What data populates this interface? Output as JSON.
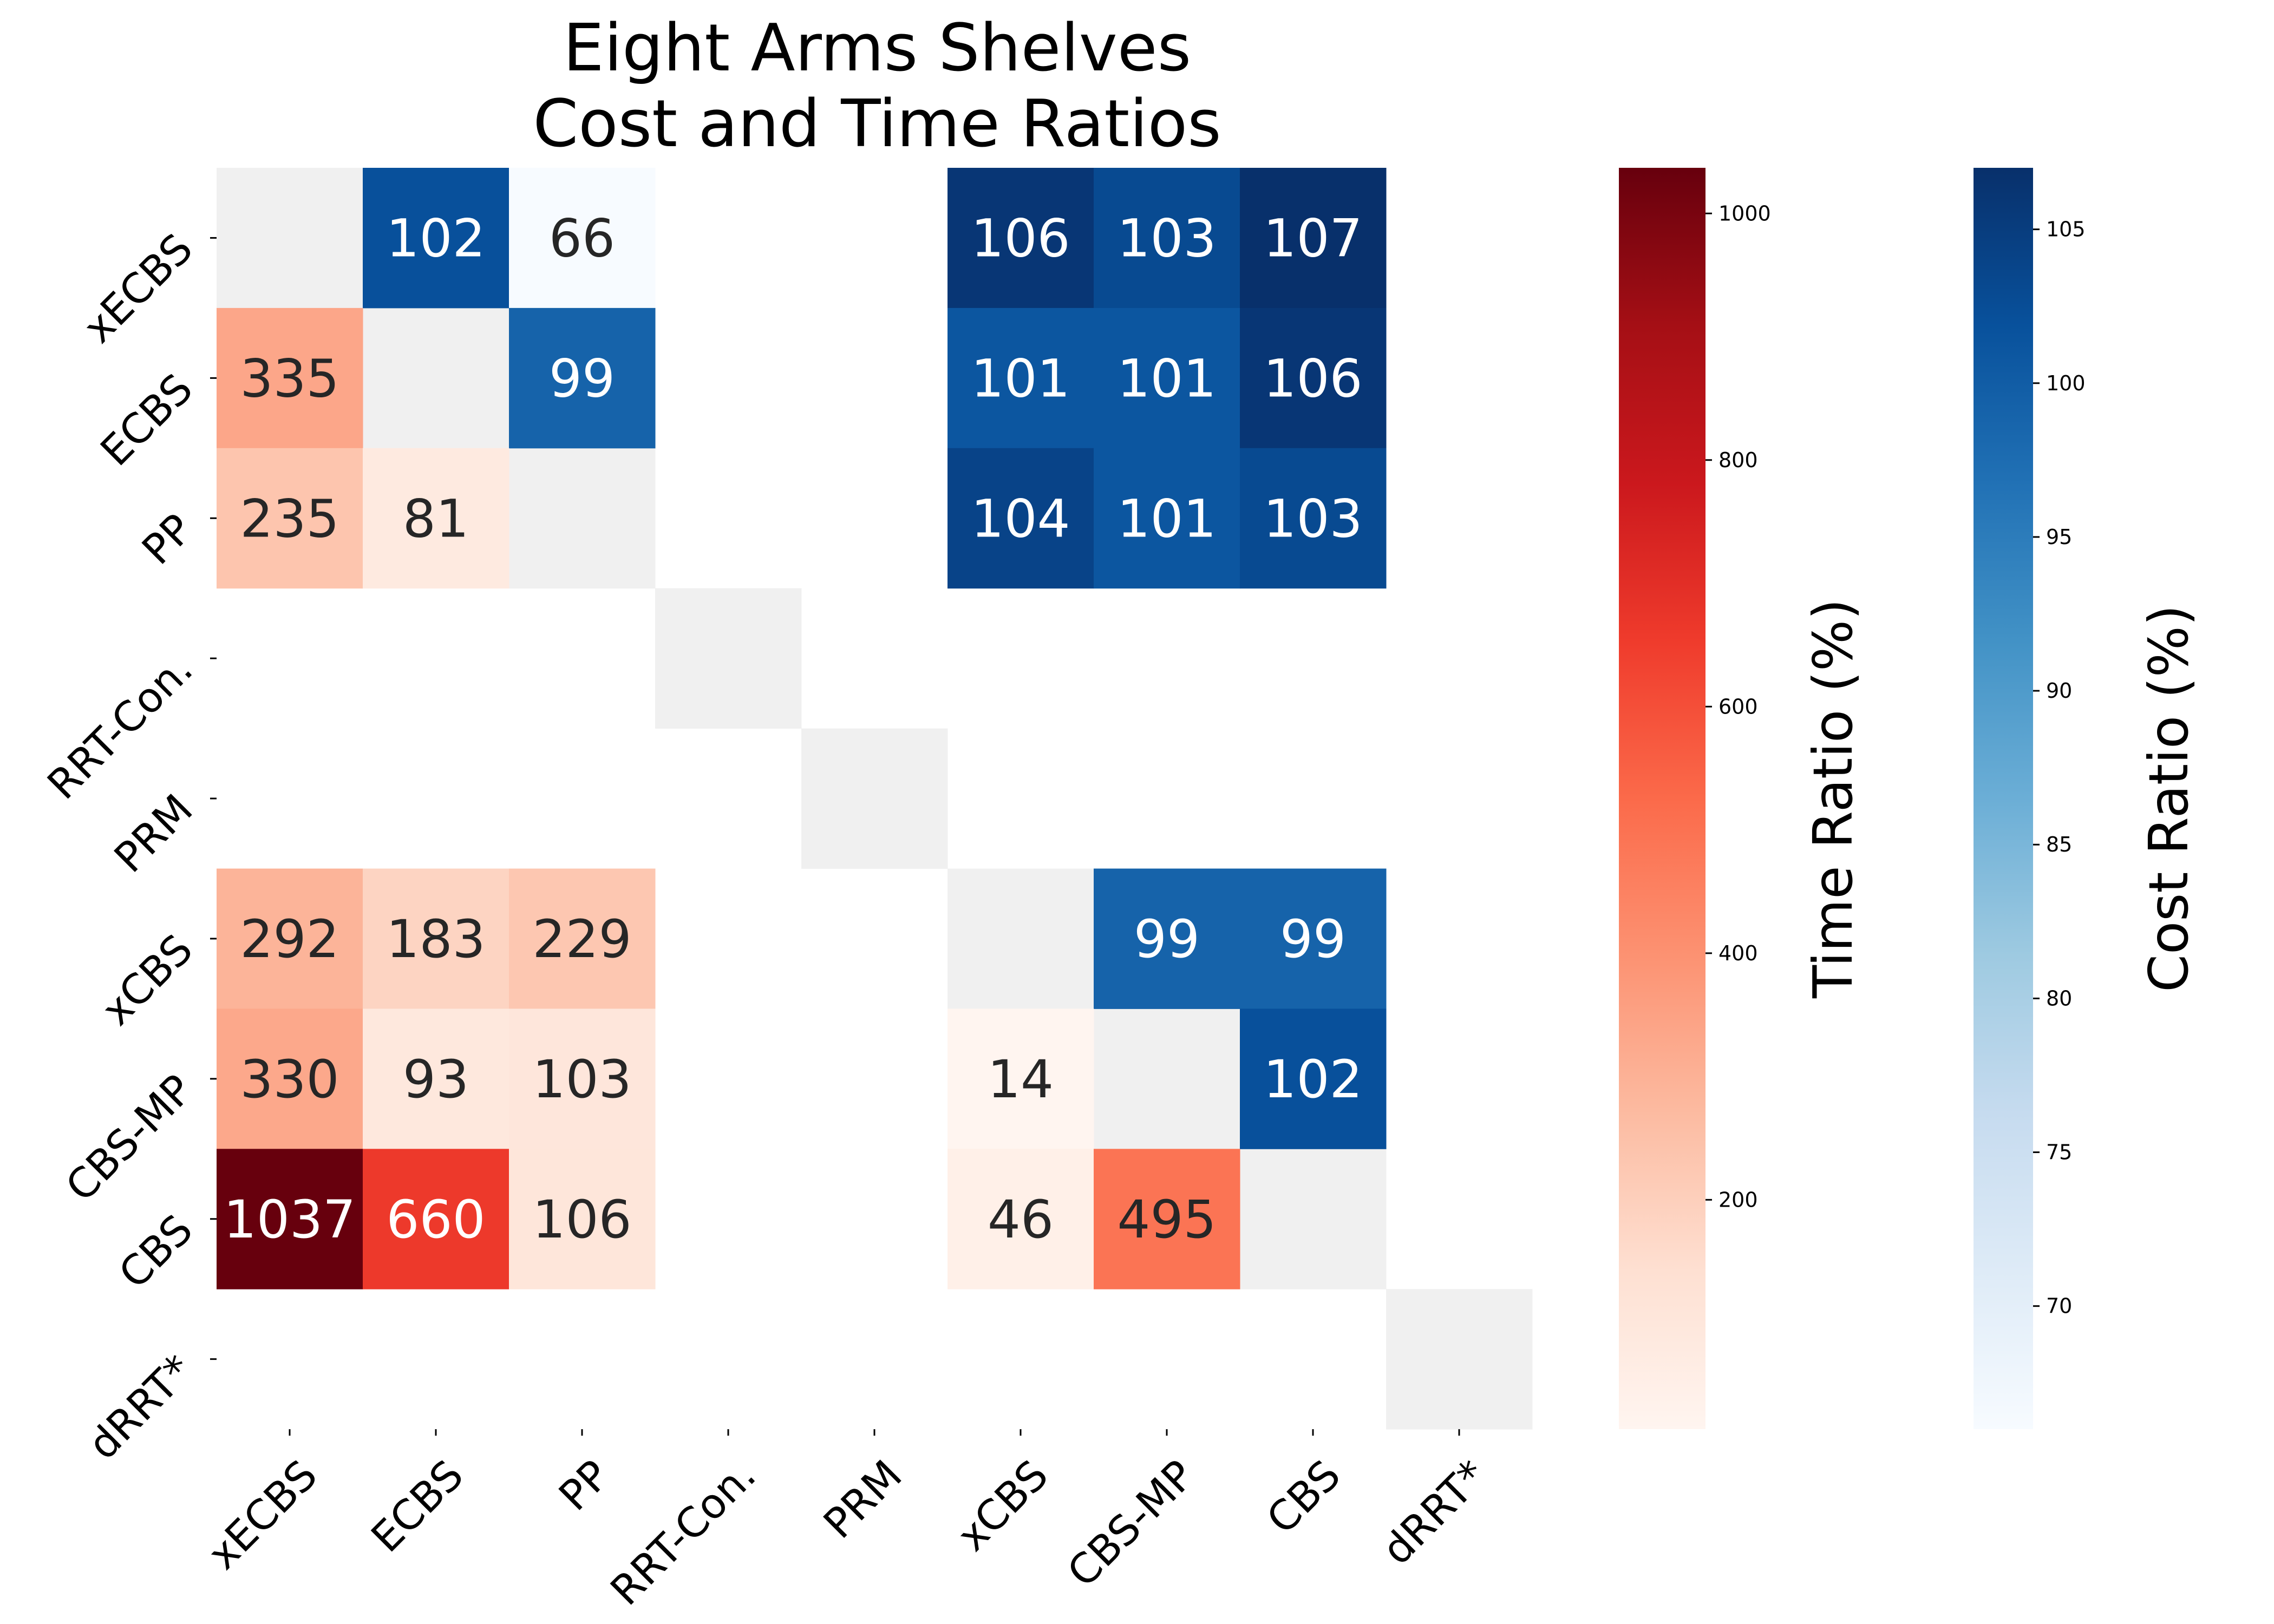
{
  "chart_data": {
    "type": "heatmap",
    "title": "Eight Arms Shelves\nCost and Time Ratios",
    "row_labels": [
      "xECBS",
      "ECBS",
      "PP",
      "RRT-Con.",
      "PRM",
      "xCBS",
      "CBS-MP",
      "CBS",
      "dRRT*"
    ],
    "col_labels": [
      "xECBS",
      "ECBS",
      "PP",
      "RRT-Con.",
      "PRM",
      "xCBS",
      "CBS-MP",
      "CBS",
      "dRRT*"
    ],
    "cost_ratio_cells": [
      {
        "row": 0,
        "col": 1,
        "value": 102
      },
      {
        "row": 0,
        "col": 2,
        "value": 66
      },
      {
        "row": 0,
        "col": 5,
        "value": 106
      },
      {
        "row": 0,
        "col": 6,
        "value": 103
      },
      {
        "row": 0,
        "col": 7,
        "value": 107
      },
      {
        "row": 1,
        "col": 2,
        "value": 99
      },
      {
        "row": 1,
        "col": 5,
        "value": 101
      },
      {
        "row": 1,
        "col": 6,
        "value": 101
      },
      {
        "row": 1,
        "col": 7,
        "value": 106
      },
      {
        "row": 2,
        "col": 5,
        "value": 104
      },
      {
        "row": 2,
        "col": 6,
        "value": 101
      },
      {
        "row": 2,
        "col": 7,
        "value": 103
      },
      {
        "row": 5,
        "col": 6,
        "value": 99
      },
      {
        "row": 5,
        "col": 7,
        "value": 99
      },
      {
        "row": 6,
        "col": 7,
        "value": 102
      }
    ],
    "time_ratio_cells": [
      {
        "row": 1,
        "col": 0,
        "value": 335
      },
      {
        "row": 2,
        "col": 0,
        "value": 235
      },
      {
        "row": 2,
        "col": 1,
        "value": 81
      },
      {
        "row": 5,
        "col": 0,
        "value": 292
      },
      {
        "row": 5,
        "col": 1,
        "value": 183
      },
      {
        "row": 5,
        "col": 2,
        "value": 229
      },
      {
        "row": 6,
        "col": 0,
        "value": 330
      },
      {
        "row": 6,
        "col": 1,
        "value": 93
      },
      {
        "row": 6,
        "col": 2,
        "value": 103
      },
      {
        "row": 6,
        "col": 5,
        "value": 14
      },
      {
        "row": 7,
        "col": 0,
        "value": 1037
      },
      {
        "row": 7,
        "col": 1,
        "value": 660
      },
      {
        "row": 7,
        "col": 2,
        "value": 106
      },
      {
        "row": 7,
        "col": 5,
        "value": 46
      },
      {
        "row": 7,
        "col": 6,
        "value": 495
      }
    ],
    "diagonal_color": "#f0f0f0",
    "time_colorbar": {
      "label": "Time Ratio (%)",
      "colormap": "Reds",
      "range": [
        14,
        1037
      ],
      "ticks": [
        200,
        400,
        600,
        800,
        1000
      ]
    },
    "cost_colorbar": {
      "label": "Cost Ratio (%)",
      "colormap": "Blues",
      "range": [
        66,
        107
      ],
      "ticks": [
        70,
        75,
        80,
        85,
        90,
        95,
        100,
        105
      ]
    }
  }
}
